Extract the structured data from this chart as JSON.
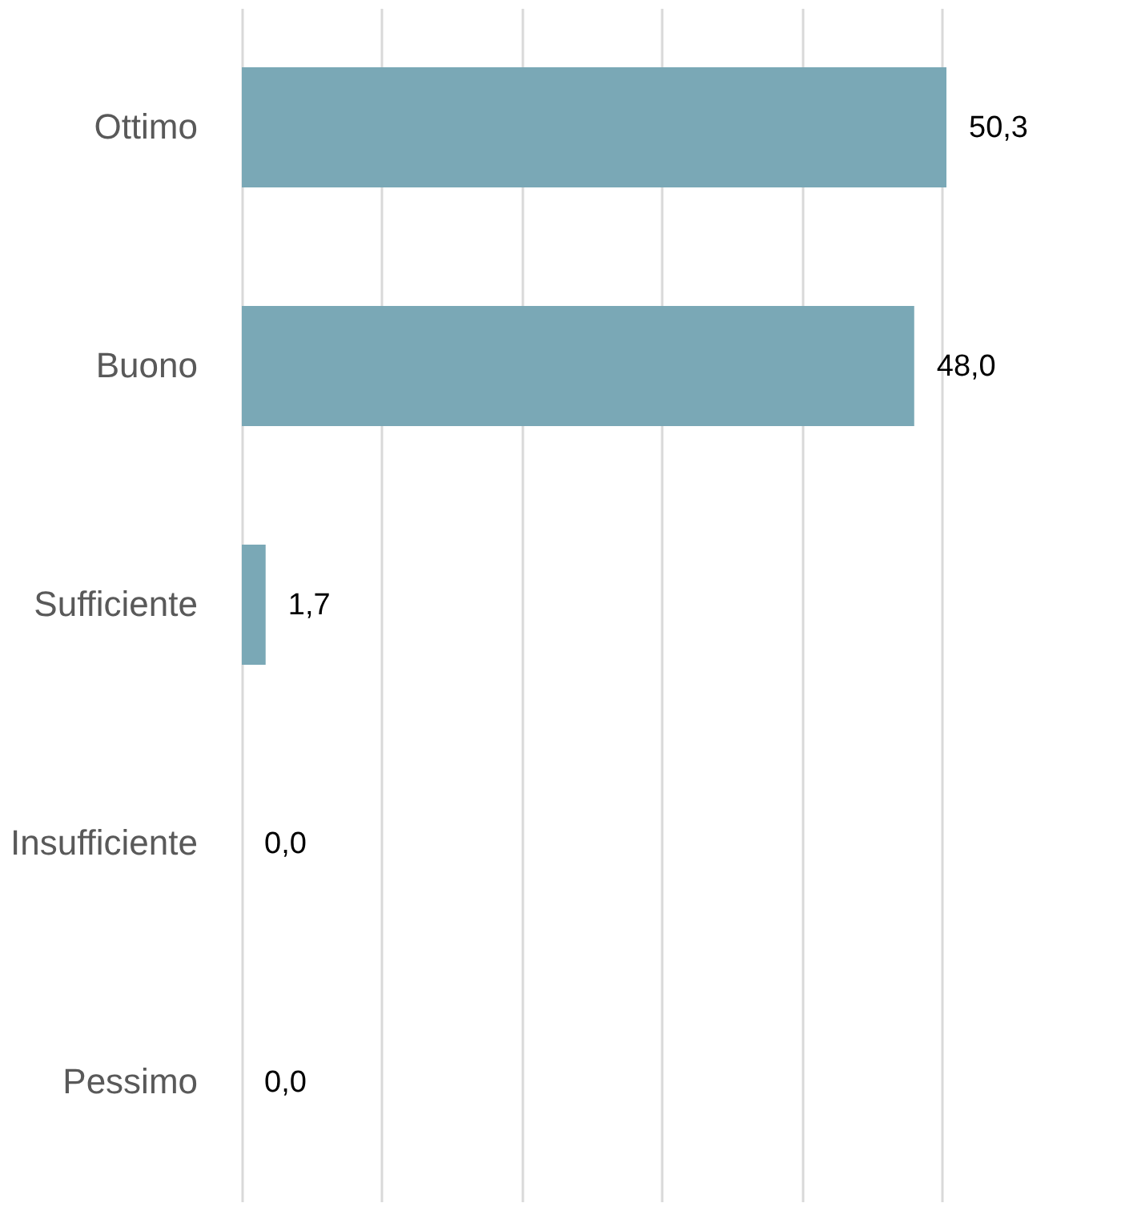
{
  "chart_data": {
    "type": "bar",
    "orientation": "horizontal",
    "categories": [
      "Ottimo",
      "Buono",
      "Sufficiente",
      "Insufficiente",
      "Pessimo"
    ],
    "values": [
      50.3,
      48.0,
      1.7,
      0.0,
      0.0
    ],
    "value_labels": [
      "50,3",
      "48,0",
      "1,7",
      "0,0",
      "0,0"
    ],
    "color": "#7aa8b6",
    "xticks": [
      {
        "value": 0,
        "label": null
      },
      {
        "value": 10,
        "label": null
      },
      {
        "value": 20,
        "label": null
      },
      {
        "value": 30,
        "label": null
      },
      {
        "value": 40,
        "label": null
      },
      {
        "value": 50,
        "label": null
      }
    ],
    "grid": "x",
    "tick_labels": "y"
  }
}
